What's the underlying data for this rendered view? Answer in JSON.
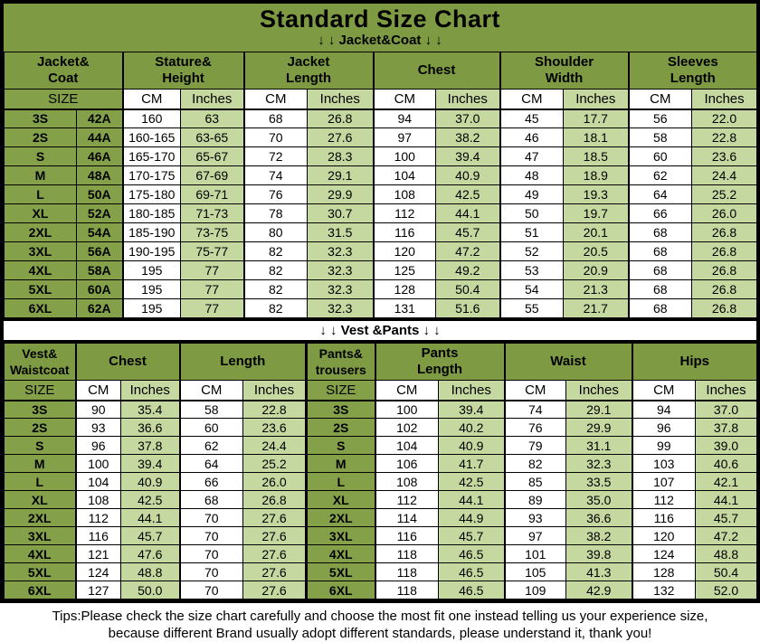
{
  "title": "Standard Size Chart",
  "labels": {
    "size": "SIZE",
    "cm": "CM",
    "inches": "Inches"
  },
  "jacket_section": {
    "banner": "↓ ↓  Jacket&Coat ↓ ↓",
    "groups": [
      "Jacket&\nCoat",
      "Stature&\nHeight",
      "Jacket\nLength",
      "Chest",
      "Shoulder\nWidth",
      "Sleeves\nLength"
    ],
    "rows": [
      [
        "3S",
        "42A",
        "160",
        "63",
        "68",
        "26.8",
        "94",
        "37.0",
        "45",
        "17.7",
        "56",
        "22.0"
      ],
      [
        "2S",
        "44A",
        "160-165",
        "63-65",
        "70",
        "27.6",
        "97",
        "38.2",
        "46",
        "18.1",
        "58",
        "22.8"
      ],
      [
        "S",
        "46A",
        "165-170",
        "65-67",
        "72",
        "28.3",
        "100",
        "39.4",
        "47",
        "18.5",
        "60",
        "23.6"
      ],
      [
        "M",
        "48A",
        "170-175",
        "67-69",
        "74",
        "29.1",
        "104",
        "40.9",
        "48",
        "18.9",
        "62",
        "24.4"
      ],
      [
        "L",
        "50A",
        "175-180",
        "69-71",
        "76",
        "29.9",
        "108",
        "42.5",
        "49",
        "19.3",
        "64",
        "25.2"
      ],
      [
        "XL",
        "52A",
        "180-185",
        "71-73",
        "78",
        "30.7",
        "112",
        "44.1",
        "50",
        "19.7",
        "66",
        "26.0"
      ],
      [
        "2XL",
        "54A",
        "185-190",
        "73-75",
        "80",
        "31.5",
        "116",
        "45.7",
        "51",
        "20.1",
        "68",
        "26.8"
      ],
      [
        "3XL",
        "56A",
        "190-195",
        "75-77",
        "82",
        "32.3",
        "120",
        "47.2",
        "52",
        "20.5",
        "68",
        "26.8"
      ],
      [
        "4XL",
        "58A",
        "195",
        "77",
        "82",
        "32.3",
        "125",
        "49.2",
        "53",
        "20.9",
        "68",
        "26.8"
      ],
      [
        "5XL",
        "60A",
        "195",
        "77",
        "82",
        "32.3",
        "128",
        "50.4",
        "54",
        "21.3",
        "68",
        "26.8"
      ],
      [
        "6XL",
        "62A",
        "195",
        "77",
        "82",
        "32.3",
        "131",
        "51.6",
        "55",
        "21.7",
        "68",
        "26.8"
      ]
    ]
  },
  "vest_section": {
    "banner": "↓ ↓ Vest &Pants ↓ ↓",
    "groups": [
      "Vest&\nWaistcoat",
      "Chest",
      "Length",
      "Pants&\ntrousers",
      "Pants\nLength",
      "Waist",
      "Hips"
    ],
    "rows": [
      [
        "3S",
        "90",
        "35.4",
        "58",
        "22.8",
        "3S",
        "100",
        "39.4",
        "74",
        "29.1",
        "94",
        "37.0"
      ],
      [
        "2S",
        "93",
        "36.6",
        "60",
        "23.6",
        "2S",
        "102",
        "40.2",
        "76",
        "29.9",
        "96",
        "37.8"
      ],
      [
        "S",
        "96",
        "37.8",
        "62",
        "24.4",
        "S",
        "104",
        "40.9",
        "79",
        "31.1",
        "99",
        "39.0"
      ],
      [
        "M",
        "100",
        "39.4",
        "64",
        "25.2",
        "M",
        "106",
        "41.7",
        "82",
        "32.3",
        "103",
        "40.6"
      ],
      [
        "L",
        "104",
        "40.9",
        "66",
        "26.0",
        "L",
        "108",
        "42.5",
        "85",
        "33.5",
        "107",
        "42.1"
      ],
      [
        "XL",
        "108",
        "42.5",
        "68",
        "26.8",
        "XL",
        "112",
        "44.1",
        "89",
        "35.0",
        "112",
        "44.1"
      ],
      [
        "2XL",
        "112",
        "44.1",
        "70",
        "27.6",
        "2XL",
        "114",
        "44.9",
        "93",
        "36.6",
        "116",
        "45.7"
      ],
      [
        "3XL",
        "116",
        "45.7",
        "70",
        "27.6",
        "3XL",
        "116",
        "45.7",
        "97",
        "38.2",
        "120",
        "47.2"
      ],
      [
        "4XL",
        "121",
        "47.6",
        "70",
        "27.6",
        "4XL",
        "118",
        "46.5",
        "101",
        "39.8",
        "124",
        "48.8"
      ],
      [
        "5XL",
        "124",
        "48.8",
        "70",
        "27.6",
        "5XL",
        "118",
        "46.5",
        "105",
        "41.3",
        "128",
        "50.4"
      ],
      [
        "6XL",
        "127",
        "50.0",
        "70",
        "27.6",
        "6XL",
        "118",
        "46.5",
        "109",
        "42.9",
        "132",
        "52.0"
      ]
    ]
  },
  "footer": {
    "line1": "Tips:Please check the size chart carefully and choose the most fit one instead telling us your experience size,",
    "line2": "because different Brand usually adopt different standards, please understand it, thank you!"
  },
  "colors": {
    "header_green": "#7E9B43",
    "size_green": "#84A14A",
    "light_green": "#C5D8A0",
    "cell_white": "#FFFFFF",
    "border": "#000000"
  }
}
